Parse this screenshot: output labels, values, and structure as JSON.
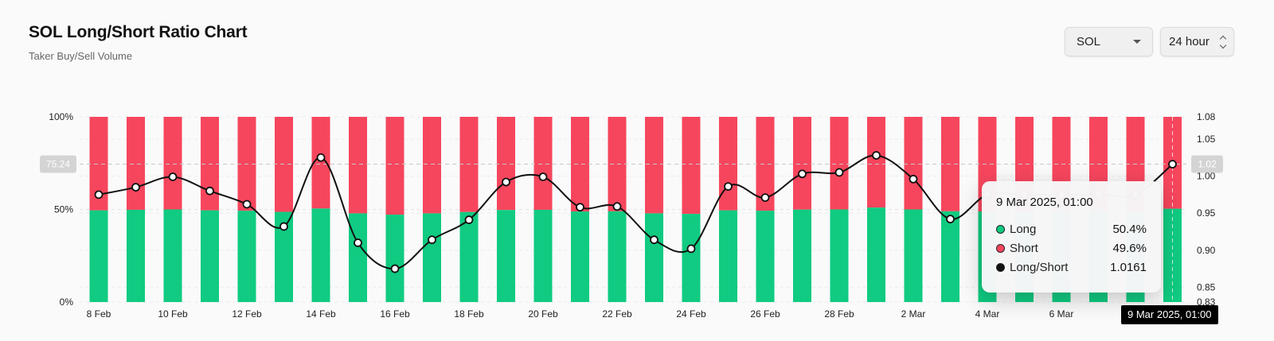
{
  "header": {
    "title": "SOL Long/Short Ratio Chart",
    "subtitle": "Taker Buy/Sell Volume"
  },
  "controls": {
    "asset": "SOL",
    "period": "24 hour"
  },
  "colors": {
    "long": "#10cb81",
    "short": "#f6465d",
    "ratio_line": "#111111",
    "background": "#fafafa"
  },
  "chart_data": {
    "type": "bar",
    "x": [
      "8 Feb",
      "9 Feb",
      "10 Feb",
      "11 Feb",
      "12 Feb",
      "13 Feb",
      "14 Feb",
      "15 Feb",
      "16 Feb",
      "17 Feb",
      "18 Feb",
      "19 Feb",
      "20 Feb",
      "21 Feb",
      "22 Feb",
      "23 Feb",
      "24 Feb",
      "25 Feb",
      "26 Feb",
      "27 Feb",
      "28 Feb",
      "1 Mar",
      "2 Mar",
      "3 Mar",
      "4 Mar",
      "5 Mar",
      "6 Mar",
      "7 Mar",
      "8 Mar",
      "9 Mar"
    ],
    "x_tick_labels": [
      "8 Feb",
      "10 Feb",
      "12 Feb",
      "14 Feb",
      "16 Feb",
      "18 Feb",
      "20 Feb",
      "22 Feb",
      "24 Feb",
      "26 Feb",
      "28 Feb",
      "2 Mar",
      "4 Mar",
      "6 Mar",
      "8 Mar"
    ],
    "series": [
      {
        "name": "Long",
        "axis": "left",
        "unit": "%",
        "values": [
          49.5,
          49.8,
          50.0,
          49.5,
          49.3,
          48.7,
          50.5,
          47.9,
          47.2,
          47.9,
          48.6,
          49.7,
          49.8,
          48.9,
          49.0,
          47.9,
          47.6,
          49.5,
          49.3,
          49.9,
          50.0,
          51.0,
          50.0,
          49.0,
          48.9,
          49.0,
          49.2,
          49.1,
          48.5,
          50.4
        ]
      },
      {
        "name": "Short",
        "axis": "left",
        "unit": "%",
        "values": [
          50.5,
          50.2,
          50.0,
          50.5,
          50.7,
          51.3,
          49.5,
          52.1,
          52.8,
          52.1,
          51.4,
          50.3,
          50.2,
          51.1,
          51.0,
          52.1,
          52.4,
          50.5,
          50.7,
          50.1,
          50.0,
          49.0,
          50.0,
          51.0,
          51.1,
          51.0,
          50.8,
          50.9,
          51.5,
          49.6
        ]
      },
      {
        "name": "Long/Short",
        "type": "line",
        "axis": "right",
        "values": [
          0.975,
          0.985,
          0.999,
          0.98,
          0.962,
          0.932,
          1.025,
          0.91,
          0.875,
          0.914,
          0.941,
          0.992,
          0.999,
          0.958,
          0.959,
          0.914,
          0.902,
          0.986,
          0.971,
          1.003,
          1.005,
          1.028,
          0.996,
          0.942,
          0.975,
          0.975,
          0.975,
          0.975,
          0.975,
          1.0161
        ]
      }
    ],
    "left_axis": {
      "ticks": [
        "0%",
        "50%",
        "100%"
      ],
      "range": [
        0,
        100
      ]
    },
    "right_axis": {
      "ticks": [
        "0.83",
        "0.85",
        "0.90",
        "0.95",
        "1.00",
        "1.05",
        "1.08"
      ],
      "range": [
        0.83,
        1.08
      ]
    },
    "crosshair": {
      "left_label": "75.24",
      "right_label": "1.02",
      "x_label": "9 Mar 2025, 01:00"
    },
    "grid": "horizontal-dashed"
  },
  "tooltip": {
    "title": "9 Mar 2025, 01:00",
    "rows": [
      {
        "label": "Long",
        "value": "50.4%",
        "color": "#10cb81"
      },
      {
        "label": "Short",
        "value": "49.6%",
        "color": "#f6465d"
      },
      {
        "label": "Long/Short",
        "value": "1.0161",
        "color": "#111111"
      }
    ]
  }
}
